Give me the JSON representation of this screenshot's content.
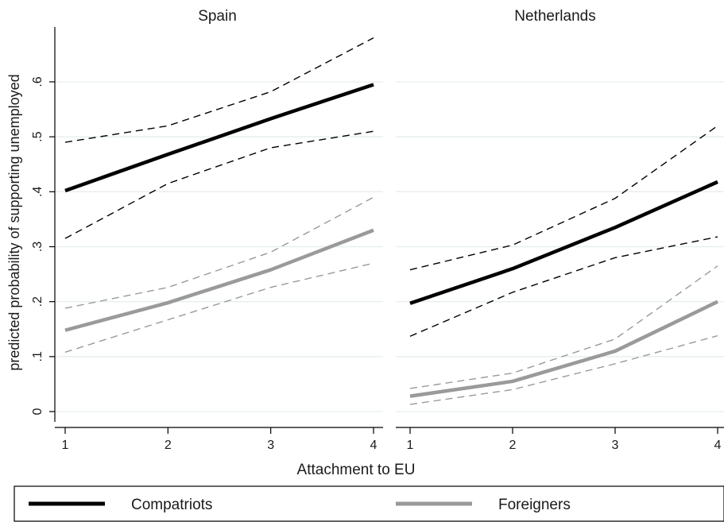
{
  "chart_data": {
    "type": "line",
    "ylabel": "predicted probability of supporting unemployed",
    "xlabel": "Attachment to EU",
    "ylim": [
      0,
      0.65
    ],
    "yticks": [
      0,
      0.1,
      0.2,
      0.3,
      0.4,
      0.5,
      0.6
    ],
    "ytick_labels": [
      "0",
      ".1",
      ".2",
      ".3",
      ".4",
      ".5",
      ".6"
    ],
    "x": [
      1,
      2,
      3,
      4
    ],
    "xlim": [
      1,
      4
    ],
    "grid": true,
    "colors": {
      "compatriots": "#000000",
      "foreigners": "#9a9a9a"
    },
    "legend": {
      "placement": "bottom",
      "entries": [
        {
          "label": "Compatriots",
          "series_key": "compatriots"
        },
        {
          "label": "Foreigners",
          "series_key": "foreigners"
        }
      ]
    },
    "panels": [
      {
        "title": "Spain",
        "series": [
          {
            "key": "compatriots",
            "name": "Compatriots",
            "values": [
              0.402,
              0.468,
              0.533,
              0.595
            ],
            "ci_low": [
              0.315,
              0.415,
              0.48,
              0.51
            ],
            "ci_high": [
              0.49,
              0.52,
              0.582,
              0.68
            ]
          },
          {
            "key": "foreigners",
            "name": "Foreigners",
            "values": [
              0.148,
              0.198,
              0.258,
              0.33
            ],
            "ci_low": [
              0.108,
              0.167,
              0.226,
              0.27
            ],
            "ci_high": [
              0.188,
              0.226,
              0.29,
              0.39
            ]
          }
        ]
      },
      {
        "title": "Netherlands",
        "series": [
          {
            "key": "compatriots",
            "name": "Compatriots",
            "values": [
              0.197,
              0.26,
              0.335,
              0.418
            ],
            "ci_low": [
              0.137,
              0.217,
              0.28,
              0.318
            ],
            "ci_high": [
              0.258,
              0.303,
              0.388,
              0.52
            ]
          },
          {
            "key": "foreigners",
            "name": "Foreigners",
            "values": [
              0.028,
              0.055,
              0.11,
              0.2
            ],
            "ci_low": [
              0.013,
              0.04,
              0.087,
              0.138
            ],
            "ci_high": [
              0.042,
              0.07,
              0.132,
              0.265
            ]
          }
        ]
      }
    ]
  }
}
